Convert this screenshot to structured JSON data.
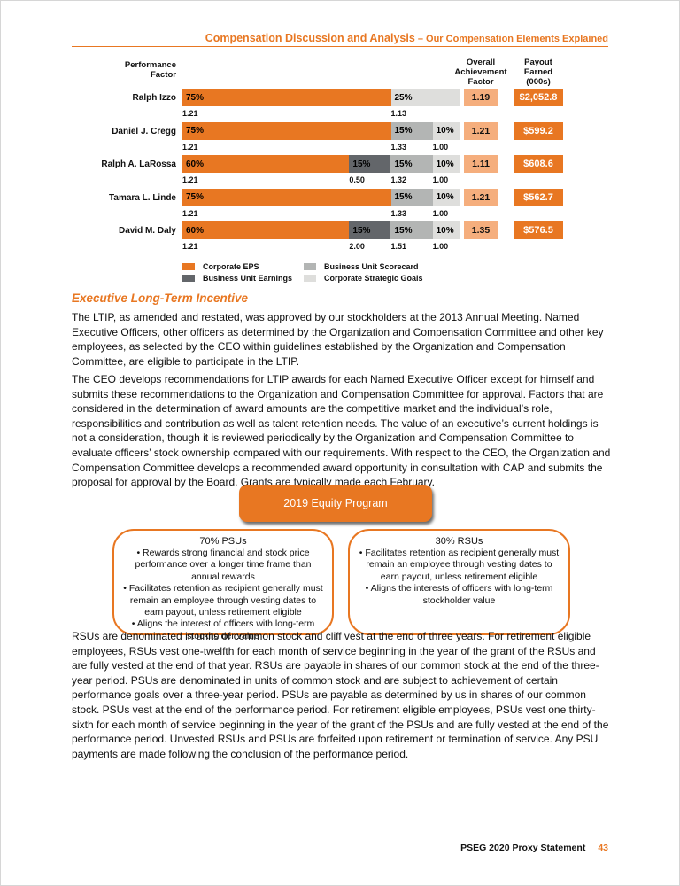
{
  "header": {
    "title": "Compensation Discussion and Analysis",
    "subtitle": " – Our Compensation Elements Explained"
  },
  "chart_data": {
    "type": "bar",
    "orientation": "horizontal-stacked",
    "column_headers": {
      "performance": "Performance\nFactor",
      "overall": "Overall\nAchievement\nFactor",
      "payout": "Payout\nEarned\n(000s)"
    },
    "colors": {
      "corporate_eps": "#E87722",
      "business_unit_earnings": "#63666A",
      "business_unit_scorecard": "#B3B5B4",
      "corporate_strategic_goals": "#DEDEDC"
    },
    "rows": [
      {
        "name": "Ralph Izzo",
        "overall": "1.19",
        "payout": "$2,052.8",
        "segments": [
          {
            "key": "corporate_eps",
            "pct": 75,
            "label": "75%",
            "factor": "1.21"
          },
          {
            "key": "corporate_strategic_goals",
            "pct": 25,
            "label": "25%",
            "factor": "1.13"
          }
        ]
      },
      {
        "name": "Daniel J. Cregg",
        "overall": "1.21",
        "payout": "$599.2",
        "segments": [
          {
            "key": "corporate_eps",
            "pct": 75,
            "label": "75%",
            "factor": "1.21"
          },
          {
            "key": "business_unit_scorecard",
            "pct": 15,
            "label": "15%",
            "factor": "1.33"
          },
          {
            "key": "corporate_strategic_goals",
            "pct": 10,
            "label": "10%",
            "factor": "1.00"
          }
        ]
      },
      {
        "name": "Ralph A. LaRossa",
        "overall": "1.11",
        "payout": "$608.6",
        "segments": [
          {
            "key": "corporate_eps",
            "pct": 60,
            "label": "60%",
            "factor": "1.21"
          },
          {
            "key": "business_unit_earnings",
            "pct": 15,
            "label": "15%",
            "factor": "0.50"
          },
          {
            "key": "business_unit_scorecard",
            "pct": 15,
            "label": "15%",
            "factor": "1.32"
          },
          {
            "key": "corporate_strategic_goals",
            "pct": 10,
            "label": "10%",
            "factor": "1.00"
          }
        ]
      },
      {
        "name": "Tamara L. Linde",
        "overall": "1.21",
        "payout": "$562.7",
        "segments": [
          {
            "key": "corporate_eps",
            "pct": 75,
            "label": "75%",
            "factor": "1.21"
          },
          {
            "key": "business_unit_scorecard",
            "pct": 15,
            "label": "15%",
            "factor": "1.33"
          },
          {
            "key": "corporate_strategic_goals",
            "pct": 10,
            "label": "10%",
            "factor": "1.00"
          }
        ]
      },
      {
        "name": "David M. Daly",
        "overall": "1.35",
        "payout": "$576.5",
        "segments": [
          {
            "key": "corporate_eps",
            "pct": 60,
            "label": "60%",
            "factor": "1.21"
          },
          {
            "key": "business_unit_earnings",
            "pct": 15,
            "label": "15%",
            "factor": "2.00"
          },
          {
            "key": "business_unit_scorecard",
            "pct": 15,
            "label": "15%",
            "factor": "1.51"
          },
          {
            "key": "corporate_strategic_goals",
            "pct": 10,
            "label": "10%",
            "factor": "1.00"
          }
        ]
      }
    ],
    "legend": [
      {
        "key": "corporate_eps",
        "label": "Corporate EPS"
      },
      {
        "key": "business_unit_earnings",
        "label": "Business Unit Earnings"
      },
      {
        "key": "business_unit_scorecard",
        "label": "Business Unit Scorecard"
      },
      {
        "key": "corporate_strategic_goals",
        "label": "Corporate Strategic Goals"
      }
    ]
  },
  "section": {
    "heading": "Executive Long-Term Incentive",
    "para1": "The LTIP, as amended and restated, was approved by our stockholders at the 2013 Annual Meeting. Named Executive Officers, other officers as determined by the Organization and Compensation Committee and other key employees, as selected by the CEO within guidelines established by the Organization and Compensation Committee, are eligible to participate in the LTIP.",
    "para2": "The CEO develops recommendations for LTIP awards for each Named Executive Officer except for himself and submits these recommendations to the Organization and Compensation Committee for approval. Factors that are considered in the determination of award amounts are the competitive market and the individual’s role, responsibilities and contribution as well as talent retention needs. The value of an executive’s current holdings is not a consideration, though it is reviewed periodically by the Organization and Compensation Committee to evaluate officers’ stock ownership compared with our requirements. With respect to the CEO, the Organization and Compensation Committee develops a recommended award opportunity in consultation with CAP and submits the proposal for approval by the Board. Grants are typically made each February.",
    "para3": "RSUs are denominated in units of common stock and cliff vest at the end of three years. For retirement eligible employees, RSUs vest one-twelfth for each month of service beginning in the year of the grant of the RSUs and are fully vested at the end of that year. RSUs are payable in shares of our common stock at the end of the three-year period. PSUs are denominated in units of common stock and are subject to achievement of certain performance goals over a three-year period. PSUs are payable as determined by us in shares of our common stock. PSUs vest at the end of the performance period. For retirement eligible employees, PSUs vest one thirty-sixth for each month of service beginning in the year of the grant of the PSUs and are fully vested at the end of the performance period. Unvested RSUs and PSUs are forfeited upon retirement or termination of service. Any PSU payments are made following the conclusion of the performance period."
  },
  "diagram": {
    "root_label": "2019 Equity Program",
    "bullet_char": "•",
    "left_box": {
      "title": "70% PSUs",
      "bullets": [
        "Rewards strong financial and stock price performance over a longer time frame than annual rewards",
        "Facilitates retention as recipient generally must remain an employee through vesting dates to earn payout, unless retirement eligible",
        "Aligns the interest of officers with long-term stockholder value"
      ]
    },
    "right_box": {
      "title": "30% RSUs",
      "bullets": [
        "Facilitates retention as recipient generally must remain an employee through vesting dates to earn payout, unless retirement eligible",
        "Aligns the interests of officers with long-term stockholder value"
      ]
    }
  },
  "footer": {
    "text": "PSEG 2020 Proxy Statement",
    "page_number": "43"
  }
}
